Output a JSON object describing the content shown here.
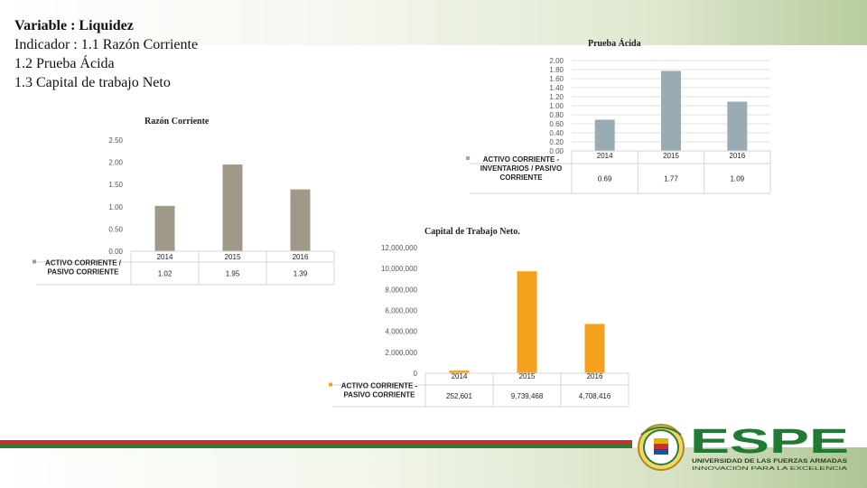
{
  "slide": {
    "title_line1": "Variable : Liquidez",
    "title_line2": "Indicador : 1.1 Razón Corriente",
    "title_line3": "1.2 Prueba  Ácida",
    "title_line4": "1.3 Capital  de trabajo Neto"
  },
  "logo": {
    "brand": "ESPE",
    "subtitle": "UNIVERSIDAD DE LAS FUERZAS ARMADAS",
    "motto": "INNOVACIÓN  PARA  LA  EXCELENCIA",
    "colors": {
      "green": "#1f7a33",
      "red": "#c7302b",
      "yellow": "#e0b400"
    }
  },
  "chart_data": [
    {
      "type": "bar",
      "title": "Razón Corriente",
      "categories": [
        "2014",
        "2015",
        "2016"
      ],
      "series": [
        {
          "name": "ACTIVO CORRIENTE / PASIVO CORRIENTE",
          "values": [
            1.02,
            1.95,
            1.39
          ],
          "labels": [
            "1.02",
            "1.95",
            "1.39"
          ]
        }
      ],
      "yticks": [
        "0.00",
        "0.50",
        "1.00",
        "1.50",
        "2.00",
        "2.50"
      ],
      "ylim": [
        0,
        2.5
      ],
      "legend_position": "table",
      "grid": false,
      "color": "#a09888"
    },
    {
      "type": "bar",
      "title": "Prueba Ácida",
      "categories": [
        "2014",
        "2015",
        "2016"
      ],
      "series": [
        {
          "name": "ACTIVO CORRIENTE - INVENTARIOS / PASIVO CORRIENTE",
          "values": [
            0.69,
            1.77,
            1.09
          ],
          "labels": [
            "0.69",
            "1.77",
            "1.09"
          ]
        }
      ],
      "yticks": [
        "0.00",
        "0.20",
        "0.40",
        "0.60",
        "0.80",
        "1.00",
        "1.20",
        "1.40",
        "1.60",
        "1.80",
        "2.00"
      ],
      "ylim": [
        0,
        2.0
      ],
      "legend_position": "table",
      "grid": true,
      "color": "#9aabb4"
    },
    {
      "type": "bar",
      "title": "Capital de Trabajo Neto.",
      "categories": [
        "2014",
        "2015",
        "2016"
      ],
      "series": [
        {
          "name": "ACTIVO CORRIENTE - PASIVO CORRIENTE",
          "values": [
            252601,
            9739468,
            4708416
          ],
          "labels": [
            "252,601",
            "9,739,468",
            "4,708,416"
          ]
        }
      ],
      "yticks": [
        "0",
        "2,000,000",
        "4,000,000",
        "6,000,000",
        "8,000,000",
        "10,000,000",
        "12,000,000"
      ],
      "ylim": [
        0,
        12000000
      ],
      "legend_position": "table",
      "grid": false,
      "color": "#f4a21d"
    }
  ]
}
